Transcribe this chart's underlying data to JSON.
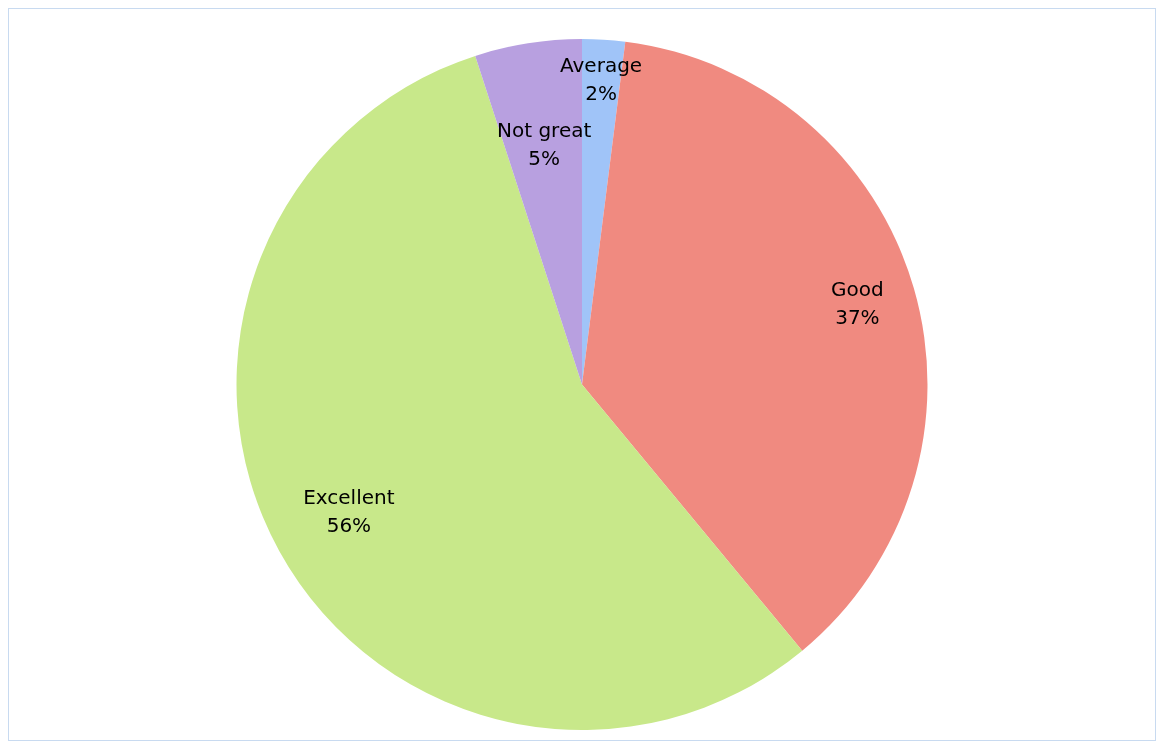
{
  "chart_data": {
    "type": "pie",
    "categories": [
      "Average",
      "Good",
      "Excellent",
      "Not great"
    ],
    "values": [
      2,
      37,
      56,
      5
    ],
    "value_labels": [
      "2%",
      "37%",
      "56%",
      "5%"
    ],
    "colors": [
      "#a0c4f8",
      "#f08a80",
      "#c8e88a",
      "#b8a0e0"
    ],
    "legend": false
  }
}
